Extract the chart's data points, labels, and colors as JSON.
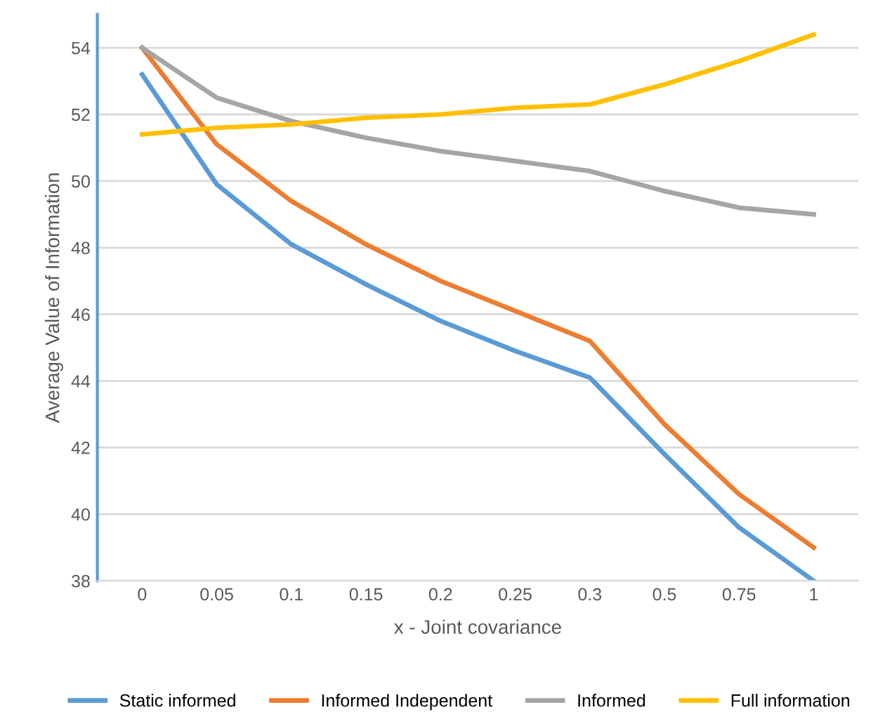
{
  "chart_data": {
    "type": "line",
    "xlabel": "x - Joint covariance",
    "ylabel": "Average Value of Information",
    "categories": [
      "0",
      "0.05",
      "0.1",
      "0.15",
      "0.2",
      "0.25",
      "0.3",
      "0.5",
      "0.75",
      "1"
    ],
    "series": [
      {
        "name": "Static informed",
        "color": "#5b9bd5",
        "values": [
          53.2,
          49.9,
          48.1,
          46.9,
          45.8,
          44.9,
          44.1,
          41.8,
          39.6,
          38.0
        ]
      },
      {
        "name": "Informed Independent",
        "color": "#ed7d31",
        "values": [
          54.0,
          51.1,
          49.4,
          48.1,
          47.0,
          46.1,
          45.2,
          42.7,
          40.6,
          39.0
        ]
      },
      {
        "name": "Informed",
        "color": "#a5a5a5",
        "values": [
          54.0,
          52.5,
          51.8,
          51.3,
          50.9,
          50.6,
          50.3,
          49.7,
          49.2,
          49.0
        ]
      },
      {
        "name": "Full information",
        "color": "#ffc000",
        "values": [
          51.4,
          51.6,
          51.7,
          51.9,
          52.0,
          52.2,
          52.3,
          52.9,
          53.6,
          54.4
        ]
      }
    ],
    "ylim": [
      38,
      55
    ],
    "yticks": [
      38,
      40,
      42,
      44,
      46,
      48,
      50,
      52,
      54
    ],
    "grid": "y",
    "legend": "bottom",
    "marker": "none",
    "line_style": "solid"
  }
}
